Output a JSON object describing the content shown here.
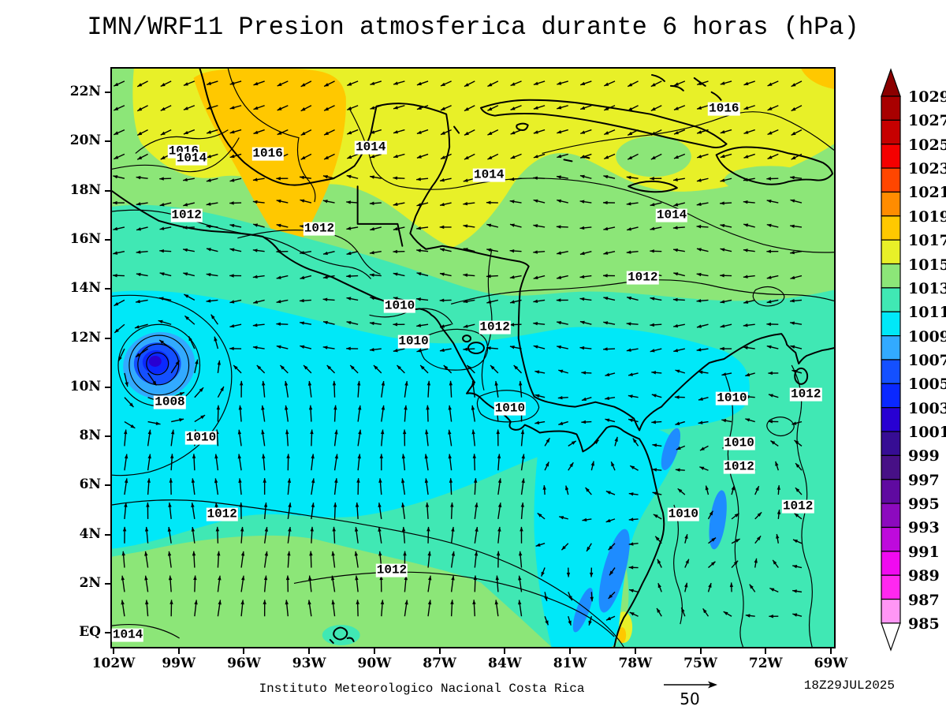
{
  "title": "IMN/WRF11 Presion atmosferica durante 6 horas (hPa)",
  "footer": {
    "institute": "Instituto Meteorologico Nacional Costa Rica",
    "timestamp": "18Z29JUL2025",
    "wind_reference_label": "50"
  },
  "colorbar": {
    "labels": [
      "1029",
      "1027",
      "1025",
      "1023",
      "1021",
      "1019",
      "1017",
      "1015",
      "1013",
      "1011",
      "1009",
      "1007",
      "1005",
      "1003",
      "1001",
      "999",
      "997",
      "995",
      "993",
      "991",
      "989",
      "987",
      "985"
    ],
    "colors": [
      "#8B0000",
      "#A80000",
      "#C60000",
      "#F40000",
      "#FF4600",
      "#FF8C00",
      "#FFC800",
      "#E8F028",
      "#8CE678",
      "#40E8B4",
      "#00E8F8",
      "#32AAFF",
      "#1450FF",
      "#0A28FF",
      "#2800D2",
      "#360D94",
      "#471086",
      "#5F0AA0",
      "#8C0ABE",
      "#BE0ADC",
      "#F00AF0",
      "#FF28F0",
      "#FF96F5",
      "#FFFFFF"
    ]
  },
  "chart_data": {
    "type": "heatmap",
    "subtype": "filled-contour sea-level pressure map with isobars and wind vectors",
    "title": "IMN/WRF11 Presion atmosferica durante 6 horas (hPa)",
    "units": "hPa",
    "x_ticks": [
      "102W",
      "99W",
      "96W",
      "93W",
      "90W",
      "87W",
      "84W",
      "81W",
      "78W",
      "75W",
      "72W",
      "69W"
    ],
    "y_ticks": [
      "22N",
      "20N",
      "18N",
      "16N",
      "14N",
      "12N",
      "10N",
      "8N",
      "6N",
      "4N",
      "2N",
      "EQ"
    ],
    "levels_hpa": {
      "min": 985,
      "max": 1029,
      "step": 2
    },
    "legend_position": "right",
    "low_center": {
      "approx_pressure_hpa": 1003,
      "lon": "100W",
      "lat": "11N"
    },
    "contour_labels": [
      {
        "v": "1016",
        "x": 10.1,
        "y": 14.5
      },
      {
        "v": "1014",
        "x": 11.2,
        "y": 15.8
      },
      {
        "v": "1016",
        "x": 21.7,
        "y": 14.9
      },
      {
        "v": "1012",
        "x": 10.5,
        "y": 25.5
      },
      {
        "v": "1012",
        "x": 28.8,
        "y": 27.8
      },
      {
        "v": "1014",
        "x": 35.9,
        "y": 13.8
      },
      {
        "v": "1014",
        "x": 52.2,
        "y": 18.6
      },
      {
        "v": "1016",
        "x": 84.6,
        "y": 7.2
      },
      {
        "v": "1014",
        "x": 77.4,
        "y": 25.5
      },
      {
        "v": "1012",
        "x": 73.4,
        "y": 36.2
      },
      {
        "v": "1010",
        "x": 39.9,
        "y": 41.1
      },
      {
        "v": "1012",
        "x": 53.0,
        "y": 44.8
      },
      {
        "v": "1010",
        "x": 41.8,
        "y": 47.2
      },
      {
        "v": "1010",
        "x": 55.1,
        "y": 58.8
      },
      {
        "v": "1008",
        "x": 8.2,
        "y": 57.7
      },
      {
        "v": "1010",
        "x": 12.5,
        "y": 63.8
      },
      {
        "v": "1012",
        "x": 15.4,
        "y": 76.9
      },
      {
        "v": "1012",
        "x": 38.8,
        "y": 86.6
      },
      {
        "v": "1014",
        "x": 2.4,
        "y": 97.7
      },
      {
        "v": "1010",
        "x": 85.7,
        "y": 57.0
      },
      {
        "v": "1012",
        "x": 95.9,
        "y": 56.3
      },
      {
        "v": "1010",
        "x": 86.7,
        "y": 64.7
      },
      {
        "v": "1012",
        "x": 86.7,
        "y": 68.8
      },
      {
        "v": "1010",
        "x": 79.0,
        "y": 76.9
      },
      {
        "v": "1012",
        "x": 94.8,
        "y": 75.6
      }
    ],
    "wind_vectors": {
      "reference_value": 50,
      "rotation_at_low": "counterclockwise"
    }
  }
}
